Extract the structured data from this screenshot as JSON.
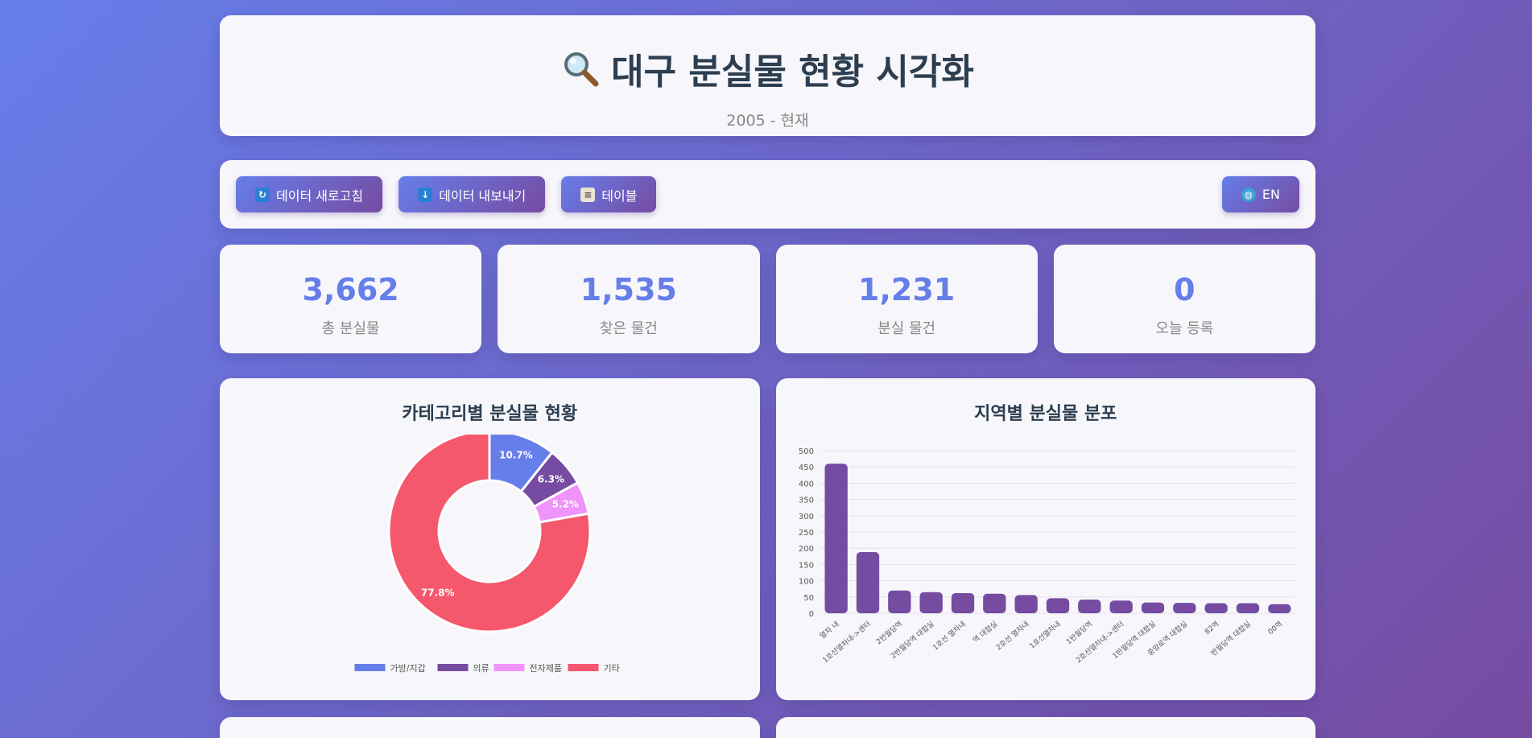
{
  "header": {
    "title": "대구 분실물 현황 시각화",
    "subtitle": "2005 - 현재",
    "title_icon": "magnifier-icon"
  },
  "toolbar": {
    "refresh_label": "데이터 새로고침",
    "export_label": "데이터 내보내기",
    "table_label": "테이블",
    "lang_label": "EN"
  },
  "stats": [
    {
      "value": "3,662",
      "label": "총 분실물"
    },
    {
      "value": "1,535",
      "label": "찾은 물건"
    },
    {
      "value": "1,231",
      "label": "분실 물건"
    },
    {
      "value": "0",
      "label": "오늘 등록"
    }
  ],
  "charts": {
    "category_title": "카테고리별 분실물 현황",
    "region_title": "지역별 분실물 분포"
  },
  "chart_data": [
    {
      "type": "pie",
      "title": "카테고리별 분실물 현황",
      "categories": [
        "가방/지갑",
        "의류",
        "전자제품",
        "기타"
      ],
      "values": [
        10.7,
        6.3,
        5.2,
        77.8
      ],
      "labels": [
        "10.7%",
        "6.3%",
        "5.2%",
        "77.8%"
      ],
      "colors": [
        "#667eea",
        "#764ba2",
        "#f093fb",
        "#f5576c"
      ],
      "legend": "bottom"
    },
    {
      "type": "bar",
      "title": "지역별 분실물 분포",
      "categories": [
        "열차 내",
        "1호선열차내->센터",
        "2반월당역",
        "2반월당역 대합실",
        "1호선 열차내",
        "역 대합실",
        "2호선 열차내",
        "1호선열차내",
        "1반월당역",
        "2호선열차내->센터",
        "1반월당역 대합실",
        "중앙로역 대합실",
        "82역",
        "반월당역 대합실",
        "00역"
      ],
      "values": [
        460,
        188,
        70,
        65,
        62,
        60,
        56,
        46,
        42,
        39,
        33,
        32,
        31,
        31,
        28
      ],
      "ylim": [
        0,
        500
      ],
      "yticks": [
        "0",
        "50",
        "100",
        "150",
        "200",
        "250",
        "300",
        "350",
        "400",
        "450",
        "500"
      ],
      "color": "#764ba2",
      "grid": true
    }
  ]
}
